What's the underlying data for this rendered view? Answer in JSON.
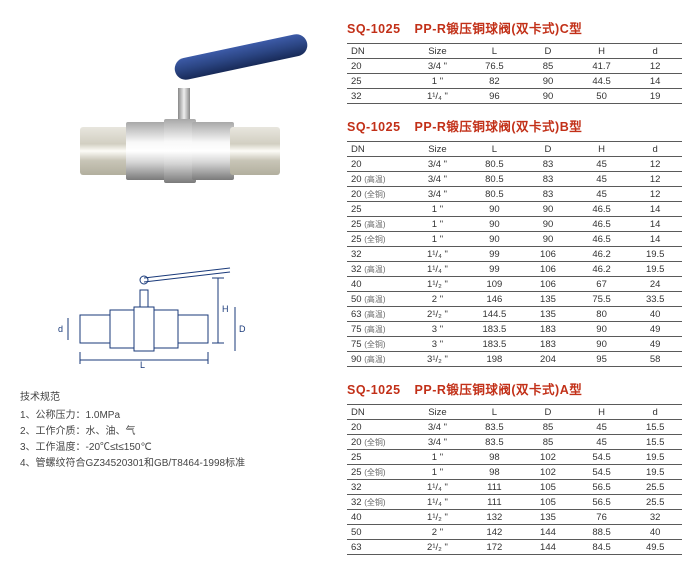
{
  "specs": {
    "header": "技术规范",
    "items": [
      "1、公称压力：1.0MPa",
      "2、工作介质：水、油、气",
      "3、工作温度：-20℃≤t≤150℃",
      "4、管螺纹符合GZ34520301和GB/T8464-1998标准"
    ]
  },
  "diagram_labels": {
    "L": "L",
    "D": "D",
    "H": "H",
    "d": "d"
  },
  "tables": [
    {
      "sku": "SQ-1025",
      "name": "PP-R锻压铜球阀(双卡式)C型",
      "columns": [
        "DN",
        "Size",
        "L",
        "D",
        "H",
        "d"
      ],
      "rows": [
        [
          "20",
          "3/4 \"",
          "76.5",
          "85",
          "41.7",
          "12"
        ],
        [
          "25",
          "1 \"",
          "82",
          "90",
          "44.5",
          "14"
        ],
        [
          "32",
          "1¹/₄ \"",
          "96",
          "90",
          "50",
          "19"
        ]
      ]
    },
    {
      "sku": "SQ-1025",
      "name": "PP-R锻压铜球阀(双卡式)B型",
      "columns": [
        "DN",
        "Size",
        "L",
        "D",
        "H",
        "d"
      ],
      "rows": [
        [
          "20",
          "3/4 \"",
          "80.5",
          "83",
          "45",
          "12"
        ],
        [
          "20 (高温)",
          "3/4 \"",
          "80.5",
          "83",
          "45",
          "12"
        ],
        [
          "20 (全铜)",
          "3/4 \"",
          "80.5",
          "83",
          "45",
          "12"
        ],
        [
          "25",
          "1 \"",
          "90",
          "90",
          "46.5",
          "14"
        ],
        [
          "25 (高温)",
          "1 \"",
          "90",
          "90",
          "46.5",
          "14"
        ],
        [
          "25 (全铜)",
          "1 \"",
          "90",
          "90",
          "46.5",
          "14"
        ],
        [
          "32",
          "1¹/₄ \"",
          "99",
          "106",
          "46.2",
          "19.5"
        ],
        [
          "32 (高温)",
          "1¹/₄ \"",
          "99",
          "106",
          "46.2",
          "19.5"
        ],
        [
          "40",
          "1¹/₂ \"",
          "109",
          "106",
          "67",
          "24"
        ],
        [
          "50 (高温)",
          "2 \"",
          "146",
          "135",
          "75.5",
          "33.5"
        ],
        [
          "63 (高温)",
          "2¹/₂ \"",
          "144.5",
          "135",
          "80",
          "40"
        ],
        [
          "75 (高温)",
          "3 \"",
          "183.5",
          "183",
          "90",
          "49"
        ],
        [
          "75 (全铜)",
          "3 \"",
          "183.5",
          "183",
          "90",
          "49"
        ],
        [
          "90 (高温)",
          "3¹/₂ \"",
          "198",
          "204",
          "95",
          "58"
        ]
      ]
    },
    {
      "sku": "SQ-1025",
      "name": "PP-R锻压铜球阀(双卡式)A型",
      "columns": [
        "DN",
        "Size",
        "L",
        "D",
        "H",
        "d"
      ],
      "rows": [
        [
          "20",
          "3/4 \"",
          "83.5",
          "85",
          "45",
          "15.5"
        ],
        [
          "20 (全铜)",
          "3/4 \"",
          "83.5",
          "85",
          "45",
          "15.5"
        ],
        [
          "25",
          "1 \"",
          "98",
          "102",
          "54.5",
          "19.5"
        ],
        [
          "25 (全铜)",
          "1 \"",
          "98",
          "102",
          "54.5",
          "19.5"
        ],
        [
          "32",
          "1¹/₄ \"",
          "111",
          "105",
          "56.5",
          "25.5"
        ],
        [
          "32 (全铜)",
          "1¹/₄ \"",
          "111",
          "105",
          "56.5",
          "25.5"
        ],
        [
          "40",
          "1¹/₂ \"",
          "132",
          "135",
          "76",
          "32"
        ],
        [
          "50",
          "2 \"",
          "142",
          "144",
          "88.5",
          "40"
        ],
        [
          "63",
          "2¹/₂ \"",
          "172",
          "144",
          "84.5",
          "49.5"
        ]
      ]
    }
  ],
  "style": {
    "title_color": "#c23018",
    "border_color": "#5a5a5a",
    "font_size_title": 12.5,
    "font_size_cell": 9.5,
    "col_widths_pct": [
      18,
      18,
      16,
      16,
      16,
      16
    ]
  }
}
